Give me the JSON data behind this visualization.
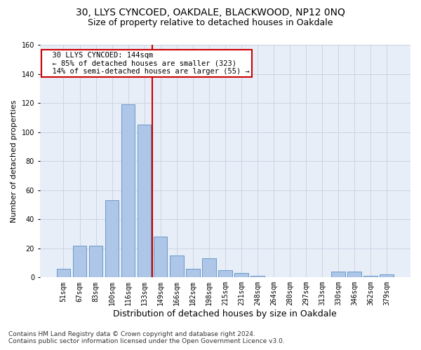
{
  "title1": "30, LLYS CYNCOED, OAKDALE, BLACKWOOD, NP12 0NQ",
  "title2": "Size of property relative to detached houses in Oakdale",
  "xlabel": "Distribution of detached houses by size in Oakdale",
  "ylabel": "Number of detached properties",
  "footnote": "Contains HM Land Registry data © Crown copyright and database right 2024.\nContains public sector information licensed under the Open Government Licence v3.0.",
  "bar_labels": [
    "51sqm",
    "67sqm",
    "83sqm",
    "100sqm",
    "116sqm",
    "133sqm",
    "149sqm",
    "166sqm",
    "182sqm",
    "198sqm",
    "215sqm",
    "231sqm",
    "248sqm",
    "264sqm",
    "280sqm",
    "297sqm",
    "313sqm",
    "330sqm",
    "346sqm",
    "362sqm",
    "379sqm"
  ],
  "bar_values": [
    6,
    22,
    22,
    53,
    119,
    105,
    28,
    15,
    6,
    13,
    5,
    3,
    1,
    0,
    0,
    0,
    0,
    4,
    4,
    1,
    2
  ],
  "bar_color": "#aec6e8",
  "bar_edge_color": "#5a8fc0",
  "vline_color": "#cc0000",
  "annotation_text": "  30 LLYS CYNCOED: 144sqm\n  ← 85% of detached houses are smaller (323)\n  14% of semi-detached houses are larger (55) →",
  "annotation_box_color": "#cc0000",
  "ylim": [
    0,
    160
  ],
  "yticks": [
    0,
    20,
    40,
    60,
    80,
    100,
    120,
    140,
    160
  ],
  "grid_color": "#c8d0e0",
  "bg_color": "#e8eef8",
  "title1_fontsize": 10,
  "title2_fontsize": 9,
  "xlabel_fontsize": 9,
  "ylabel_fontsize": 8,
  "tick_fontsize": 7,
  "annot_fontsize": 7.5,
  "footnote_fontsize": 6.5
}
